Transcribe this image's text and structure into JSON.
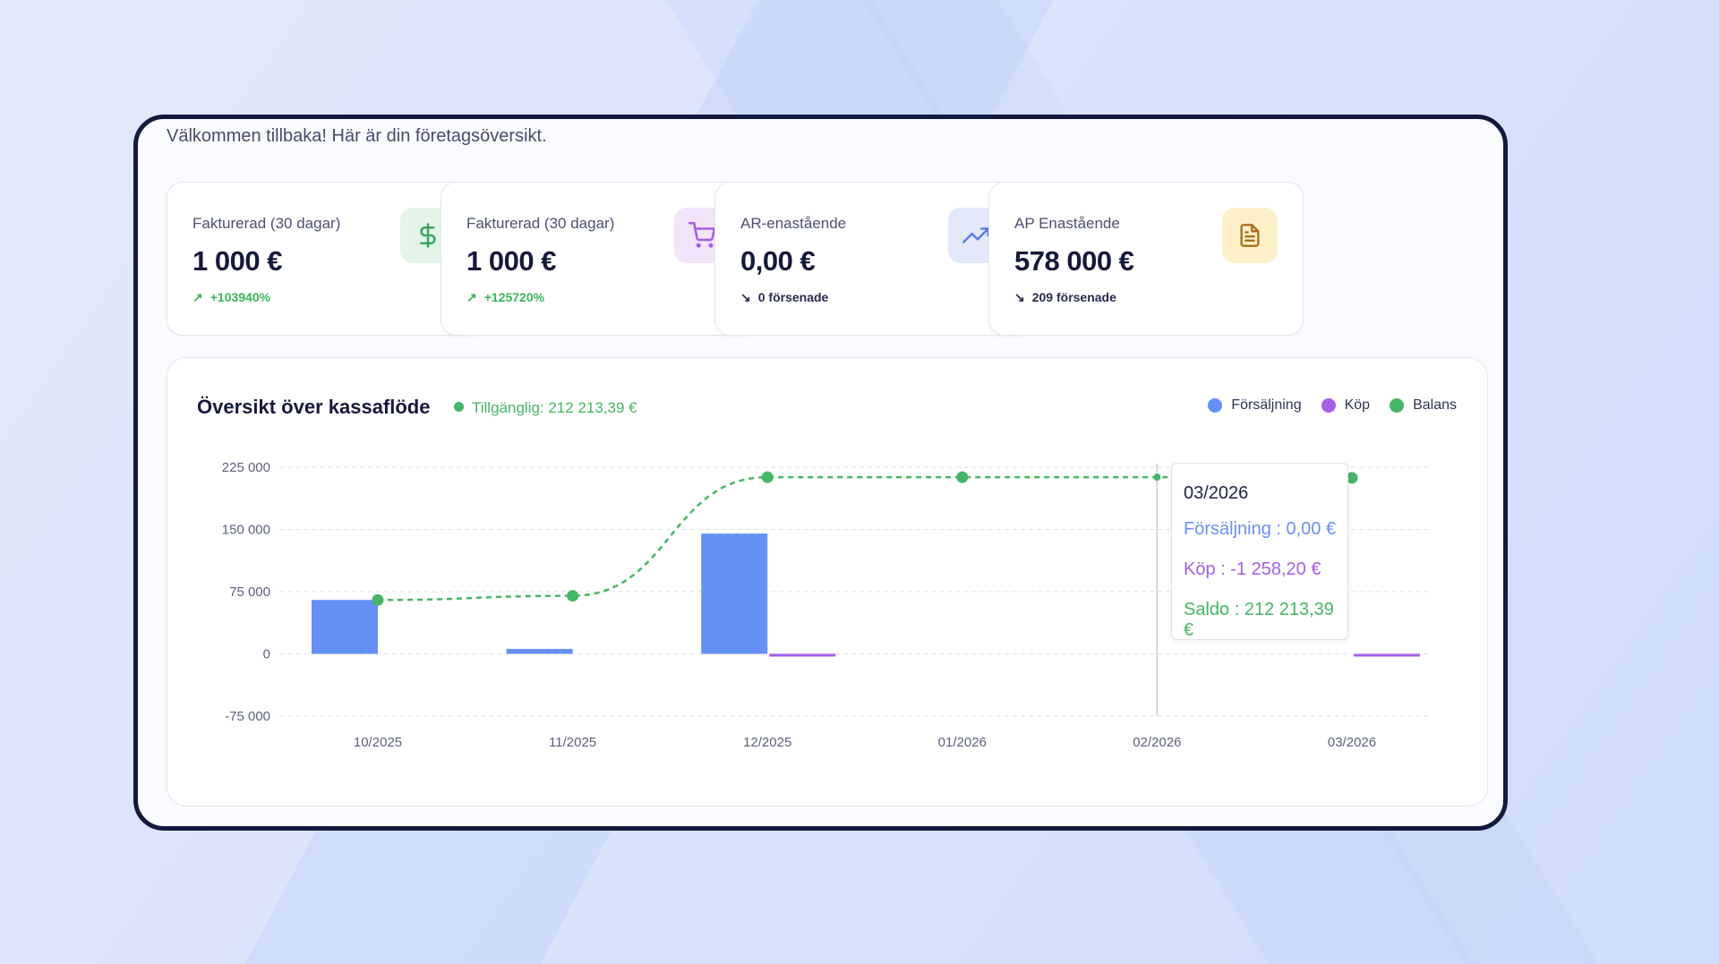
{
  "welcome_text": "Välkommen tillbaka! Här är din företagsöversikt.",
  "kpis": [
    {
      "title": "Fakturerad (30 dagar)",
      "value": "1 000 €",
      "trend": "+103940%",
      "trend_dir": "up",
      "icon": "dollar-icon",
      "icon_color": "#3fa45f",
      "icon_bg": "#e2f5e8"
    },
    {
      "title": "Fakturerad (30 dagar)",
      "value": "1 000 €",
      "trend": "+125720%",
      "trend_dir": "up",
      "icon": "shopping-cart-icon",
      "icon_color": "#a55ee6",
      "icon_bg": "#f1e4fb"
    },
    {
      "title": "AR-enastående",
      "value": "0,00 €",
      "trend": "0 försenade",
      "trend_dir": "down",
      "icon": "trending-up-icon",
      "icon_color": "#5a7fe6",
      "icon_bg": "#e3e9fb"
    },
    {
      "title": "AP Enastående",
      "value": "578 000 €",
      "trend": "209 försenade",
      "trend_dir": "down",
      "icon": "document-icon",
      "icon_color": "#a9701b",
      "icon_bg": "#fdf0c9"
    }
  ],
  "cashflow": {
    "title": "Översikt över kassaflöde",
    "available": "Tillgänglig: 212 213,39 €",
    "tooltip": {
      "title": "03/2026",
      "sales": "Försäljning : 0,00 €",
      "purchases": "Köp : -1 258,20 €",
      "balance": "Saldo : 212 213,39 €"
    }
  },
  "chart_data": {
    "type": "bar",
    "title": "Översikt över kassaflöde",
    "categories": [
      "10/2025",
      "11/2025",
      "12/2025",
      "01/2026",
      "02/2026",
      "03/2026"
    ],
    "y_ticks": [
      "225 000",
      "150 000",
      "75 000",
      "0",
      "-75 000"
    ],
    "y_tick_values": [
      225000,
      150000,
      75000,
      0,
      -75000
    ],
    "ylim": [
      -75000,
      225000
    ],
    "grid": true,
    "legend_position": "top-right",
    "series": [
      {
        "name": "Försäljning",
        "type": "bar",
        "color": "#6590f5",
        "values": [
          65000,
          6000,
          145000,
          0,
          0,
          0
        ]
      },
      {
        "name": "Köp",
        "type": "bar",
        "color": "#a55ee6",
        "values": [
          0,
          0,
          -2000,
          0,
          0,
          -1258.2
        ]
      },
      {
        "name": "Balans",
        "type": "line",
        "color": "#46b566",
        "values": [
          65000,
          70000,
          213000,
          213000,
          213000,
          212213.39
        ]
      }
    ]
  }
}
